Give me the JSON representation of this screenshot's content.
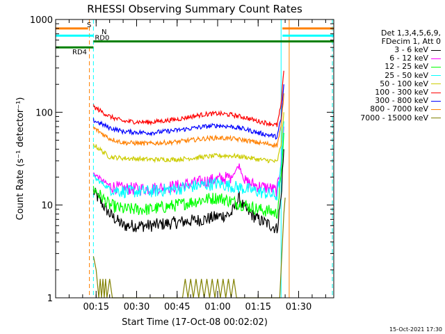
{
  "chart_data": {
    "type": "line",
    "title": "RHESSI Observing Summary Count Rates",
    "xlabel": "Start Time (17-Oct-08 00:02:02)",
    "ylabel": "Count Rate (s⁻¹ detector⁻¹)",
    "yscale": "log",
    "ylim": [
      1,
      1000
    ],
    "xlim_minutes": [
      0,
      103
    ],
    "x_ticks": [
      {
        "label": "00:15",
        "minute": 15
      },
      {
        "label": "00:30",
        "minute": 30
      },
      {
        "label": "00:45",
        "minute": 45
      },
      {
        "label": "01:00",
        "minute": 60
      },
      {
        "label": "01:15",
        "minute": 75
      },
      {
        "label": "01:30",
        "minute": 90
      }
    ],
    "y_ticks": [
      {
        "label": "1",
        "value": 1
      },
      {
        "label": "10",
        "value": 10
      },
      {
        "label": "100",
        "value": 100
      },
      {
        "label": "1000",
        "value": 1000
      }
    ],
    "legend_header": [
      "Det 1,3,4,5,6,9,",
      "FDecim 1, Att 0"
    ],
    "series": [
      {
        "name": "3 - 6 keV",
        "color": "#000000",
        "points": [
          [
            14,
            14
          ],
          [
            20,
            8
          ],
          [
            25,
            6
          ],
          [
            35,
            6
          ],
          [
            45,
            6.5
          ],
          [
            55,
            7
          ],
          [
            60,
            7.5
          ],
          [
            65,
            8
          ],
          [
            68,
            12
          ],
          [
            70,
            9
          ],
          [
            75,
            7
          ],
          [
            80,
            6
          ],
          [
            82,
            5.5
          ],
          [
            83.5,
            12
          ],
          [
            84.5,
            40
          ]
        ]
      },
      {
        "name": "6 - 12 keV",
        "color": "#ff00ff",
        "points": [
          [
            14,
            22
          ],
          [
            20,
            16
          ],
          [
            25,
            15
          ],
          [
            35,
            15
          ],
          [
            45,
            16
          ],
          [
            55,
            18
          ],
          [
            60,
            19
          ],
          [
            65,
            20
          ],
          [
            68,
            27
          ],
          [
            70,
            18
          ],
          [
            75,
            16
          ],
          [
            80,
            15
          ],
          [
            82,
            14
          ],
          [
            83.5,
            30
          ],
          [
            84.5,
            70
          ]
        ]
      },
      {
        "name": "12 - 25 keV",
        "color": "#00ff00",
        "points": [
          [
            14,
            15
          ],
          [
            20,
            10
          ],
          [
            25,
            9
          ],
          [
            35,
            9
          ],
          [
            45,
            10
          ],
          [
            55,
            11.5
          ],
          [
            60,
            12
          ],
          [
            65,
            11
          ],
          [
            70,
            10
          ],
          [
            75,
            9
          ],
          [
            80,
            8.5
          ],
          [
            82,
            8
          ],
          [
            83.5,
            20
          ],
          [
            84.5,
            60
          ]
        ]
      },
      {
        "name": "25 - 50 keV",
        "color": "#00ffff",
        "points": [
          [
            14,
            20
          ],
          [
            20,
            15
          ],
          [
            25,
            14
          ],
          [
            35,
            14
          ],
          [
            45,
            15
          ],
          [
            55,
            16.5
          ],
          [
            60,
            17
          ],
          [
            65,
            16
          ],
          [
            70,
            15
          ],
          [
            75,
            14
          ],
          [
            80,
            13
          ],
          [
            82,
            12.5
          ],
          [
            83.5,
            25
          ],
          [
            84.5,
            80
          ]
        ]
      },
      {
        "name": "50 - 100 keV",
        "color": "#cccc00",
        "points": [
          [
            14,
            45
          ],
          [
            20,
            33
          ],
          [
            25,
            32
          ],
          [
            35,
            31
          ],
          [
            45,
            31
          ],
          [
            55,
            33
          ],
          [
            60,
            34
          ],
          [
            65,
            34
          ],
          [
            70,
            33
          ],
          [
            75,
            31
          ],
          [
            80,
            30
          ],
          [
            82,
            29
          ],
          [
            83.5,
            45
          ],
          [
            84.5,
            100
          ]
        ]
      },
      {
        "name": "100 - 300 keV",
        "color": "#ff0000",
        "points": [
          [
            14,
            115
          ],
          [
            20,
            90
          ],
          [
            25,
            80
          ],
          [
            35,
            78
          ],
          [
            45,
            84
          ],
          [
            55,
            95
          ],
          [
            60,
            97
          ],
          [
            65,
            94
          ],
          [
            70,
            88
          ],
          [
            75,
            80
          ],
          [
            80,
            75
          ],
          [
            82,
            72
          ],
          [
            83.5,
            120
          ],
          [
            84.5,
            280
          ]
        ]
      },
      {
        "name": "300 - 800 keV",
        "color": "#0000ff",
        "points": [
          [
            14,
            82
          ],
          [
            20,
            68
          ],
          [
            25,
            62
          ],
          [
            35,
            60
          ],
          [
            45,
            64
          ],
          [
            55,
            70
          ],
          [
            60,
            72
          ],
          [
            65,
            70
          ],
          [
            70,
            66
          ],
          [
            75,
            60
          ],
          [
            80,
            56
          ],
          [
            82,
            54
          ],
          [
            83.5,
            85
          ],
          [
            84.5,
            200
          ]
        ]
      },
      {
        "name": "800 - 7000 keV",
        "color": "#ff8000",
        "points": [
          [
            14,
            68
          ],
          [
            20,
            52
          ],
          [
            25,
            47
          ],
          [
            35,
            46
          ],
          [
            45,
            48
          ],
          [
            55,
            52
          ],
          [
            60,
            53
          ],
          [
            65,
            52
          ],
          [
            70,
            50
          ],
          [
            75,
            47
          ],
          [
            80,
            45
          ],
          [
            82,
            44
          ],
          [
            83.5,
            70
          ],
          [
            84.5,
            160
          ]
        ]
      },
      {
        "name": "7000 - 15000 keV",
        "color": "#808000",
        "points": [
          [
            14,
            2.8
          ],
          [
            15,
            2
          ],
          [
            16,
            1
          ],
          [
            16.5,
            1.6
          ],
          [
            17,
            1
          ],
          [
            17.5,
            1.6
          ],
          [
            18,
            1
          ],
          [
            18.5,
            1.6
          ],
          [
            19,
            1
          ],
          [
            20,
            1.6
          ],
          [
            21,
            1
          ],
          [
            47,
            1
          ],
          [
            48,
            1.6
          ],
          [
            49,
            1
          ],
          [
            50,
            1.6
          ],
          [
            51,
            1
          ],
          [
            52,
            1.6
          ],
          [
            53,
            1
          ],
          [
            54,
            1.6
          ],
          [
            55,
            1
          ],
          [
            56,
            1.6
          ],
          [
            57,
            1
          ],
          [
            58,
            1.6
          ],
          [
            59,
            1
          ],
          [
            60,
            1.6
          ],
          [
            61,
            1
          ],
          [
            62,
            1.6
          ],
          [
            63,
            1
          ],
          [
            64,
            1.6
          ],
          [
            65,
            1
          ],
          [
            66,
            1.6
          ],
          [
            67,
            1
          ],
          [
            83,
            1
          ],
          [
            83.8,
            3
          ],
          [
            84.5,
            8
          ],
          [
            85,
            12
          ]
        ]
      }
    ],
    "flags": [
      {
        "label": "S",
        "color": "#ff8000",
        "y_value": 800,
        "segments": [
          [
            0,
            12
          ],
          [
            84,
            103
          ]
        ]
      },
      {
        "label": "N",
        "color": "#00ffff",
        "y_value": 670,
        "segments": [
          [
            0,
            14
          ],
          [
            84,
            103
          ]
        ]
      },
      {
        "label": "RD0",
        "color": "#008000",
        "y_value": 580,
        "segments": [
          [
            14,
            103
          ]
        ]
      },
      {
        "label": "RD4",
        "color": "#008000",
        "y_value": 500,
        "segments": [
          [
            0,
            14
          ]
        ]
      }
    ],
    "vertical_markers": [
      {
        "minute": 12.5,
        "color": "#ff8000",
        "style": "dashed"
      },
      {
        "minute": 14.0,
        "color": "#00ffff",
        "style": "dashed"
      },
      {
        "minute": 83.5,
        "color": "#00ffff",
        "style": "solid"
      },
      {
        "minute": 86.5,
        "color": "#ff8000",
        "style": "solid"
      },
      {
        "minute": 102.5,
        "color": "#ff8000",
        "style": "dashed"
      },
      {
        "minute": 102.5,
        "color": "#00ffff",
        "style": "dashed"
      }
    ]
  },
  "footer_timestamp": "15-Oct-2021 17:30"
}
